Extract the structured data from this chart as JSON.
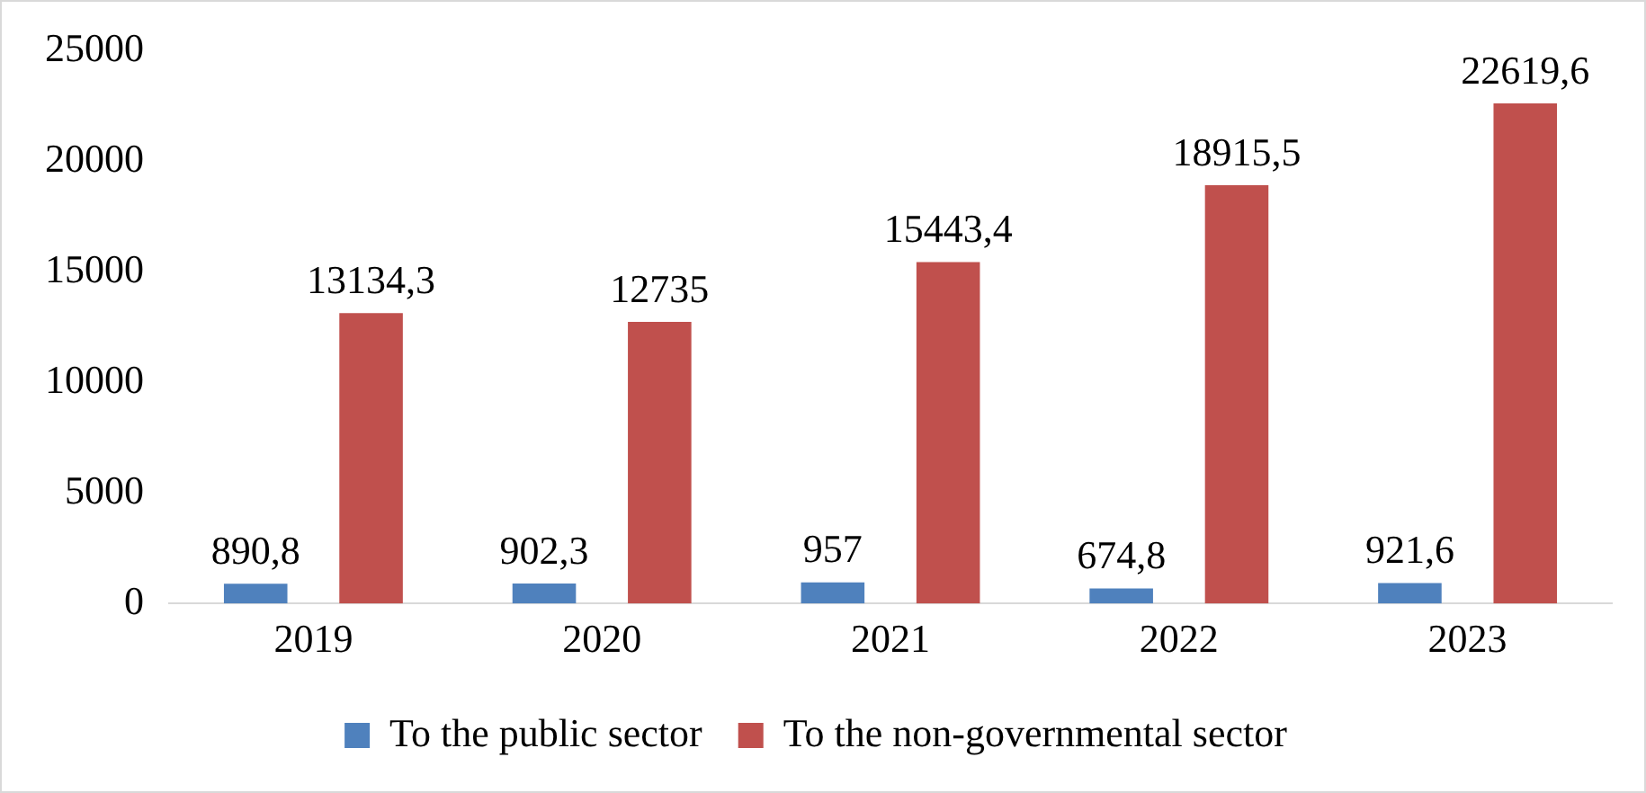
{
  "chart_data": {
    "type": "bar",
    "categories": [
      "2019",
      "2020",
      "2021",
      "2022",
      "2023"
    ],
    "series": [
      {
        "name": "To the public sector",
        "color": "#4f81bd",
        "values": [
          890.8,
          902.3,
          957,
          674.8,
          921.6
        ],
        "value_labels": [
          "890,8",
          "902,3",
          "957",
          "674,8",
          "921,6"
        ]
      },
      {
        "name": "To the non-governmental sector",
        "color": "#c0504d",
        "values": [
          13134.3,
          12735,
          15443.4,
          18915.5,
          22619.6
        ],
        "value_labels": [
          "13134,3",
          "12735",
          "15443,4",
          "18915,5",
          "22619,6"
        ]
      }
    ],
    "ylim": [
      0,
      25000
    ],
    "yticks": [
      0,
      5000,
      10000,
      15000,
      20000,
      25000
    ],
    "grid": false,
    "legend": "bottom"
  }
}
